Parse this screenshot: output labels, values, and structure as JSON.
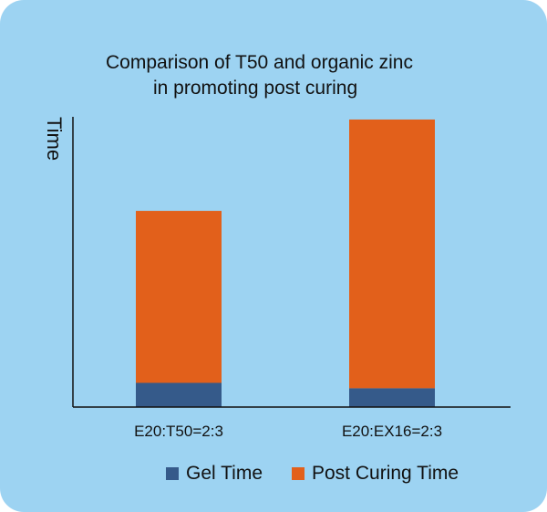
{
  "chart_data": {
    "type": "bar",
    "stacked": true,
    "title": [
      "Comparison of T50 and organic zinc",
      "in promoting post curing"
    ],
    "xlabel": "",
    "ylabel": "Time",
    "categories": [
      "E20:T50=2:3",
      "E20:EX16=2:3"
    ],
    "series": [
      {
        "name": "Gel Time",
        "color": "#355a8a",
        "values": [
          0.09,
          0.07
        ]
      },
      {
        "name": "Post Curing Time",
        "color": "#e2601b",
        "values": [
          0.64,
          1.0
        ]
      }
    ],
    "ylim": [
      0,
      1.08
    ],
    "grid": false,
    "legend_position": "bottom"
  }
}
